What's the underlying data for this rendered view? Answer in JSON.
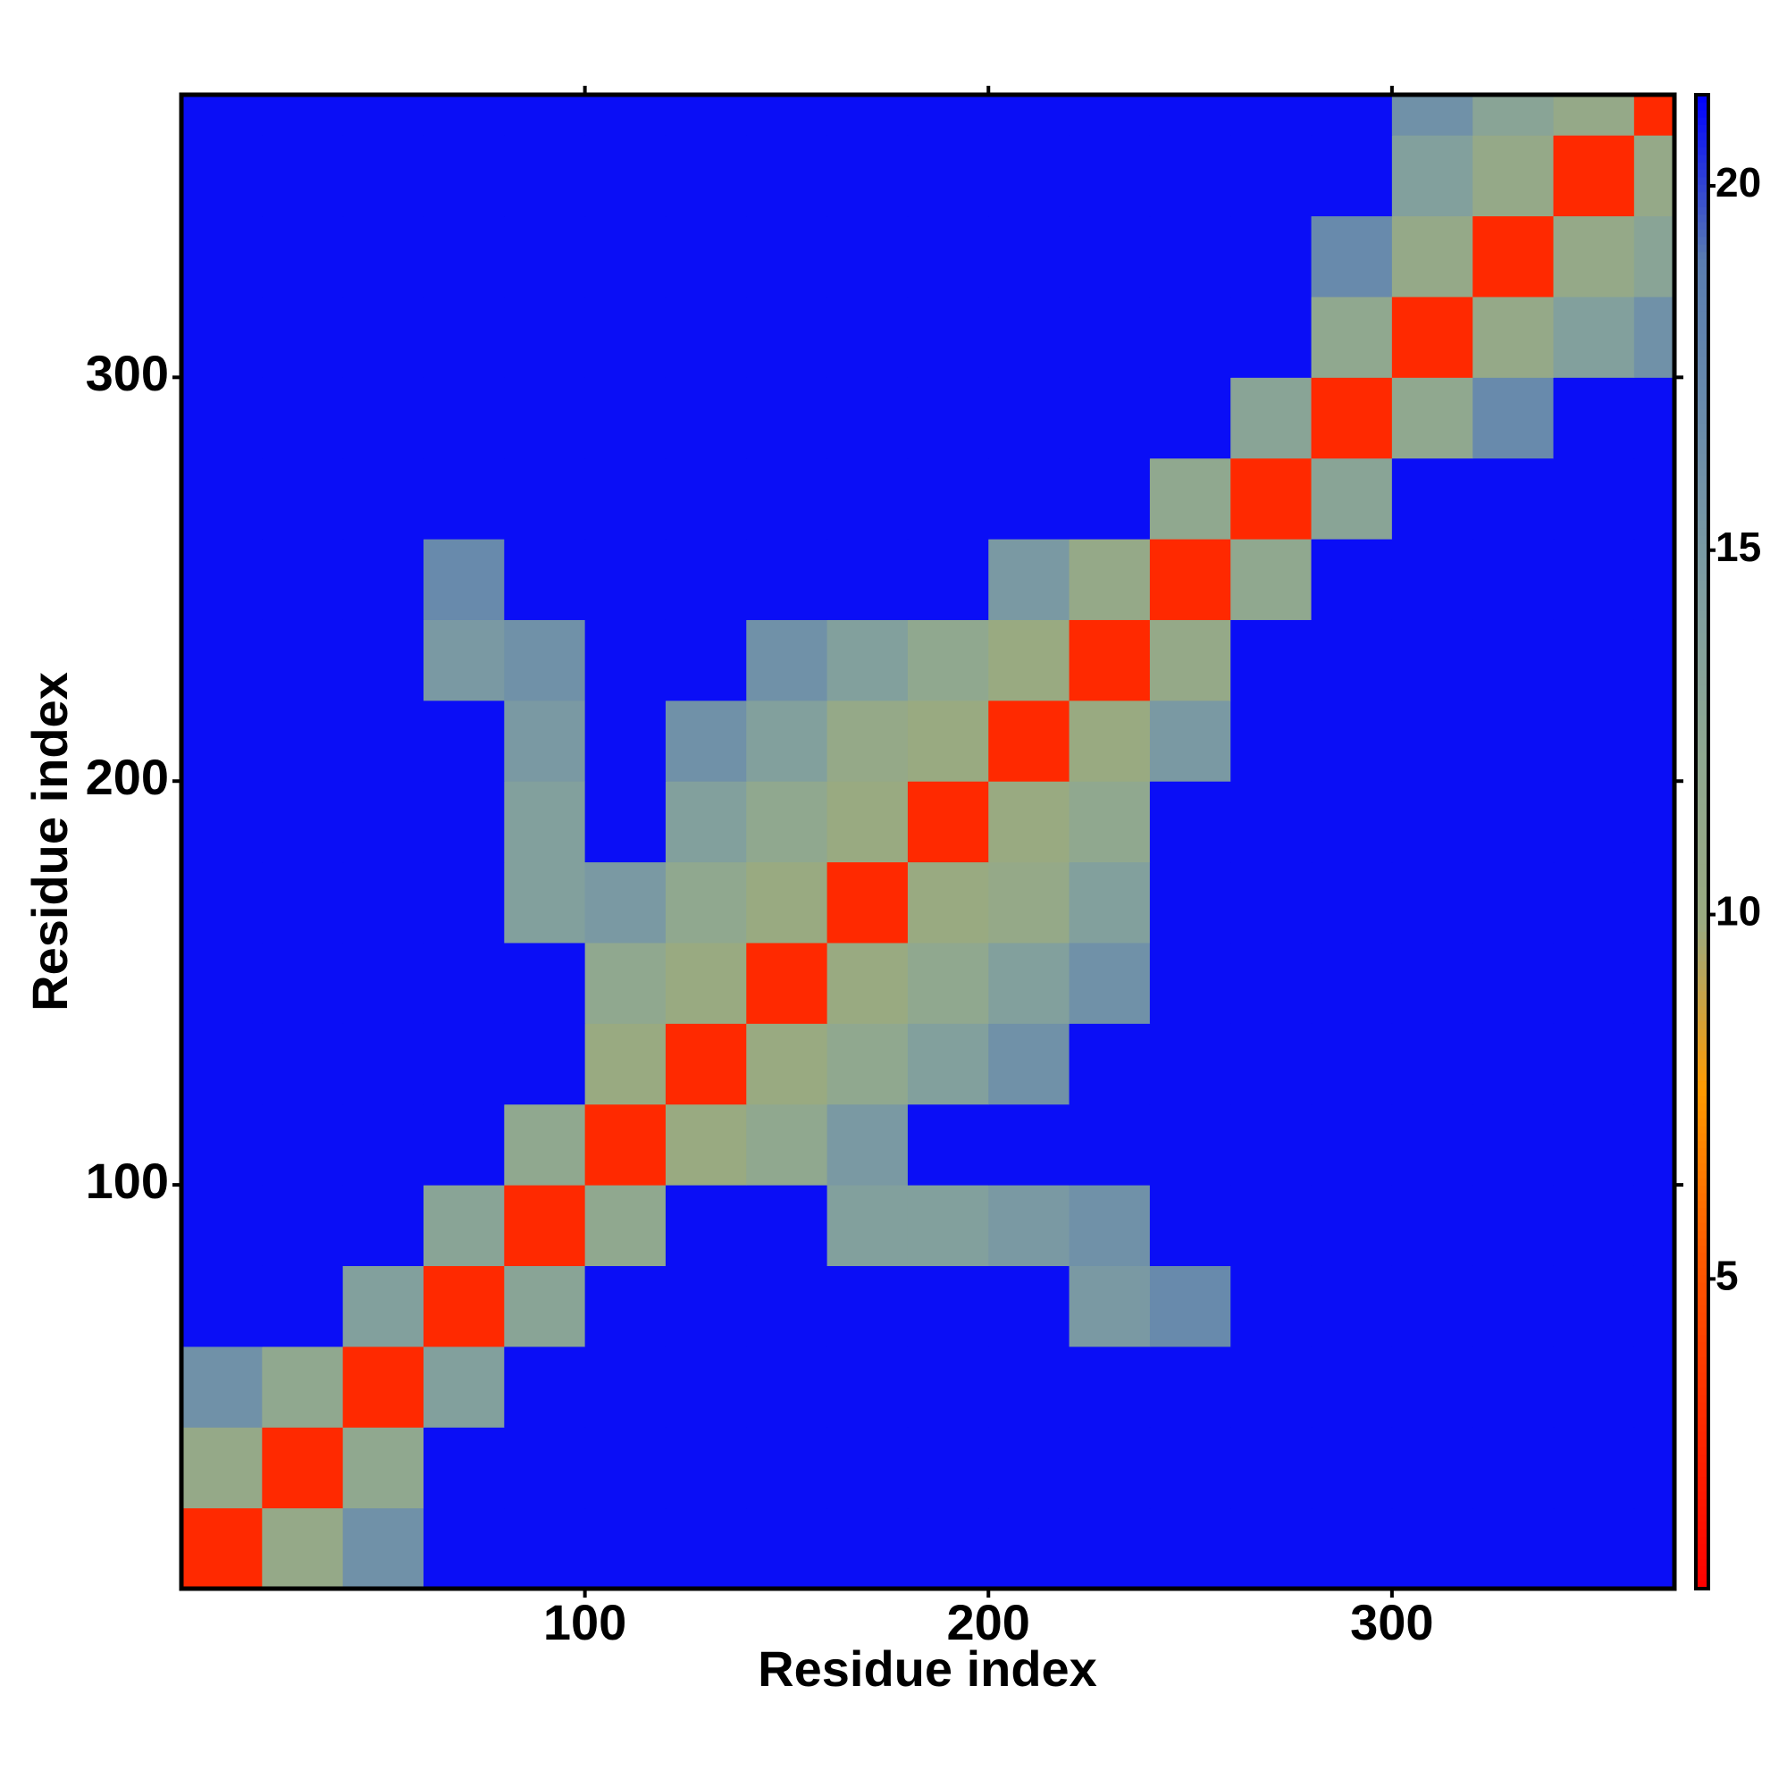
{
  "chart_data": {
    "type": "heatmap",
    "x_label": "Residue index",
    "y_label": "Residue index",
    "x": [
      0,
      20,
      40,
      60,
      80,
      100,
      120,
      140,
      160,
      180,
      200,
      220,
      240,
      260,
      280,
      300,
      320,
      340,
      360
    ],
    "y": [
      0,
      20,
      40,
      60,
      80,
      100,
      120,
      140,
      160,
      180,
      200,
      220,
      240,
      260,
      280,
      300,
      320,
      340,
      360
    ],
    "z": [
      [
        3,
        11,
        16,
        21,
        21,
        21,
        21,
        21,
        21,
        21,
        21,
        21,
        21,
        21,
        21,
        21,
        21,
        21,
        21
      ],
      [
        11,
        3,
        12,
        21,
        21,
        21,
        21,
        21,
        21,
        21,
        21,
        21,
        21,
        21,
        21,
        21,
        21,
        21,
        21
      ],
      [
        16,
        12,
        3,
        14,
        21,
        21,
        21,
        21,
        21,
        21,
        21,
        21,
        21,
        21,
        21,
        21,
        21,
        21,
        21
      ],
      [
        21,
        21,
        14,
        3,
        13,
        21,
        21,
        21,
        21,
        21,
        21,
        15,
        17,
        21,
        21,
        21,
        21,
        21,
        21
      ],
      [
        21,
        21,
        21,
        13,
        3,
        12,
        21,
        21,
        14,
        14,
        15,
        16,
        21,
        21,
        21,
        21,
        21,
        21,
        21
      ],
      [
        21,
        21,
        21,
        21,
        12,
        3,
        10,
        12,
        15,
        21,
        21,
        21,
        21,
        21,
        21,
        21,
        21,
        21,
        21
      ],
      [
        21,
        21,
        21,
        21,
        21,
        10,
        3,
        10,
        12,
        14,
        16,
        21,
        21,
        21,
        21,
        21,
        21,
        21,
        21
      ],
      [
        21,
        21,
        21,
        21,
        21,
        12,
        10,
        3,
        10,
        12,
        14,
        16,
        21,
        21,
        21,
        21,
        21,
        21,
        21
      ],
      [
        21,
        21,
        21,
        21,
        14,
        15,
        12,
        10,
        3,
        10,
        11,
        14,
        21,
        21,
        21,
        21,
        21,
        21,
        21
      ],
      [
        21,
        21,
        21,
        21,
        14,
        21,
        14,
        12,
        10,
        3,
        10,
        12,
        21,
        21,
        21,
        21,
        21,
        21,
        21
      ],
      [
        21,
        21,
        21,
        21,
        15,
        21,
        16,
        14,
        11,
        10,
        3,
        10,
        15,
        21,
        21,
        21,
        21,
        21,
        21
      ],
      [
        21,
        21,
        21,
        15,
        16,
        21,
        21,
        16,
        14,
        12,
        10,
        3,
        11,
        21,
        21,
        21,
        21,
        21,
        21
      ],
      [
        21,
        21,
        21,
        17,
        21,
        21,
        21,
        21,
        21,
        21,
        15,
        11,
        3,
        12,
        21,
        21,
        21,
        21,
        21
      ],
      [
        21,
        21,
        21,
        21,
        21,
        21,
        21,
        21,
        21,
        21,
        21,
        21,
        12,
        3,
        13,
        21,
        21,
        21,
        21
      ],
      [
        21,
        21,
        21,
        21,
        21,
        21,
        21,
        21,
        21,
        21,
        21,
        21,
        21,
        13,
        3,
        12,
        17,
        21,
        21
      ],
      [
        21,
        21,
        21,
        21,
        21,
        21,
        21,
        21,
        21,
        21,
        21,
        21,
        21,
        21,
        12,
        3,
        11,
        14,
        16
      ],
      [
        21,
        21,
        21,
        21,
        21,
        21,
        21,
        21,
        21,
        21,
        21,
        21,
        21,
        21,
        17,
        11,
        3,
        11,
        13
      ],
      [
        21,
        21,
        21,
        21,
        21,
        21,
        21,
        21,
        21,
        21,
        21,
        21,
        21,
        21,
        21,
        14,
        11,
        3,
        11
      ],
      [
        21,
        21,
        21,
        21,
        21,
        21,
        21,
        21,
        21,
        21,
        21,
        21,
        21,
        21,
        21,
        16,
        13,
        11,
        3
      ]
    ],
    "xlim": [
      0,
      370
    ],
    "ylim": [
      0,
      370
    ],
    "xticks": [
      100,
      200,
      300
    ],
    "yticks": [
      100,
      200,
      300
    ],
    "clim": [
      0.75,
      21.25
    ],
    "cticks": [
      5,
      10,
      15,
      20
    ],
    "colorscale": [
      "#ff0000",
      "#ff2a00",
      "#ff5a00",
      "#ff9a00",
      "#9aaa80",
      "#8fa890",
      "#7f9ea0",
      "#6a8cab",
      "#5a7db0",
      "#0000ff"
    ]
  }
}
